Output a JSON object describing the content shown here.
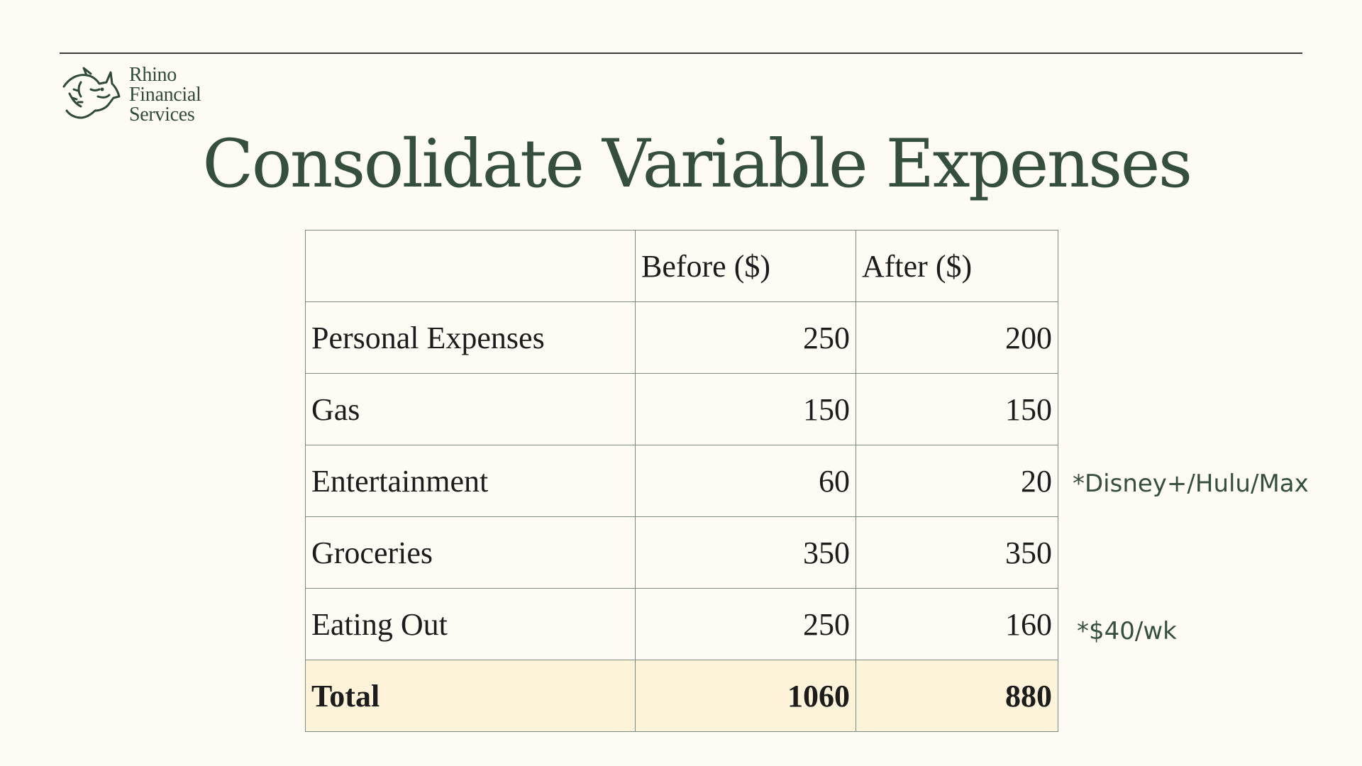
{
  "logo": {
    "icon": "rhino-icon",
    "lines": [
      "Rhino",
      "Financial",
      "Services"
    ]
  },
  "title": "Consolidate Variable Expenses",
  "table": {
    "headers": [
      "",
      "Before ($)",
      "After ($)"
    ],
    "rows": [
      {
        "label": "Personal Expenses",
        "before": "250",
        "after": "200"
      },
      {
        "label": "Gas",
        "before": "150",
        "after": "150"
      },
      {
        "label": "Entertainment",
        "before": "60",
        "after": "20"
      },
      {
        "label": "Groceries",
        "before": "350",
        "after": "350"
      },
      {
        "label": "Eating Out",
        "before": "250",
        "after": "160"
      }
    ],
    "total": {
      "label": "Total",
      "before": "1060",
      "after": "880"
    }
  },
  "notes": {
    "entertainment": "*Disney+/Hulu/Max",
    "eating_out": "*$40/wk"
  },
  "colors": {
    "background": "#fdfbf4",
    "brand_green": "#344f3c",
    "total_row_fill": "#fdf3d8",
    "table_border": "#7b8a80"
  }
}
